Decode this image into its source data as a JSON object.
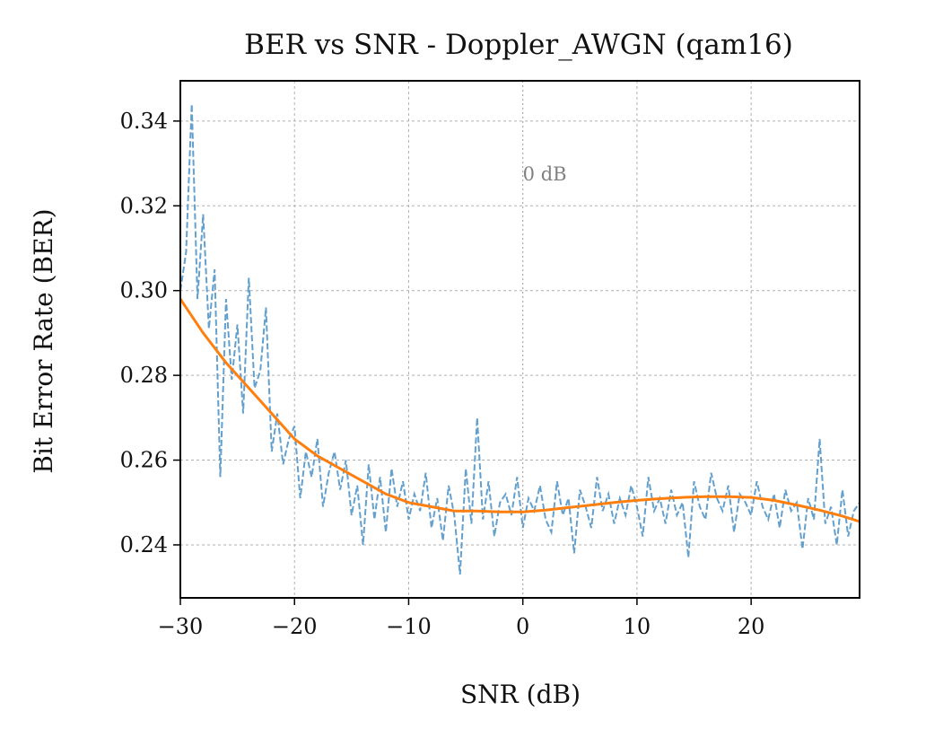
{
  "chart_data": {
    "type": "line",
    "title": "BER vs SNR - Doppler_AWGN (qam16)",
    "xlabel": "SNR (dB)",
    "ylabel": "Bit Error Rate (BER)",
    "xlim": [
      -30,
      29.5
    ],
    "ylim": [
      0.2275,
      0.3495
    ],
    "xticks": [
      -30,
      -20,
      -10,
      0,
      10,
      20
    ],
    "xtick_labels": [
      "−30",
      "−20",
      "−10",
      "0",
      "10",
      "20"
    ],
    "yticks": [
      0.24,
      0.26,
      0.28,
      0.3,
      0.32,
      0.34
    ],
    "ytick_labels": [
      "0.24",
      "0.26",
      "0.28",
      "0.30",
      "0.32",
      "0.34"
    ],
    "grid": true,
    "annotation": {
      "text": "0 dB",
      "x": 0,
      "y": 0.3275
    },
    "series": [
      {
        "style": "dashed",
        "color": "#5b9bcb",
        "x": [
          -30,
          -29.5,
          -29,
          -28.5,
          -28,
          -27.5,
          -27,
          -26.5,
          -26,
          -25.5,
          -25,
          -24.5,
          -24,
          -23.5,
          -23,
          -22.5,
          -22,
          -21.5,
          -21,
          -20.5,
          -20,
          -19.5,
          -19,
          -18.5,
          -18,
          -17.5,
          -17,
          -16.5,
          -16,
          -15.5,
          -15,
          -14.5,
          -14,
          -13.5,
          -13,
          -12.5,
          -12,
          -11.5,
          -11,
          -10.5,
          -10,
          -9.5,
          -9,
          -8.5,
          -8,
          -7.5,
          -7,
          -6.5,
          -6,
          -5.5,
          -5,
          -4.5,
          -4,
          -3.5,
          -3,
          -2.5,
          -2,
          -1.5,
          -1,
          -0.5,
          0,
          0.5,
          1,
          1.5,
          2,
          2.5,
          3,
          3.5,
          4,
          4.5,
          5,
          5.5,
          6,
          6.5,
          7,
          7.5,
          8,
          8.5,
          9,
          9.5,
          10,
          10.5,
          11,
          11.5,
          12,
          12.5,
          13,
          13.5,
          14,
          14.5,
          15,
          15.5,
          16,
          16.5,
          17,
          17.5,
          18,
          18.5,
          19,
          19.5,
          20,
          20.5,
          21,
          21.5,
          22,
          22.5,
          23,
          23.5,
          24,
          24.5,
          25,
          25.5,
          26,
          26.5,
          27,
          27.5,
          28,
          28.5,
          29,
          29.5
        ],
        "values": [
          0.3,
          0.309,
          0.344,
          0.298,
          0.318,
          0.291,
          0.305,
          0.256,
          0.298,
          0.279,
          0.292,
          0.271,
          0.303,
          0.277,
          0.281,
          0.296,
          0.262,
          0.271,
          0.259,
          0.265,
          0.268,
          0.251,
          0.262,
          0.256,
          0.265,
          0.249,
          0.257,
          0.262,
          0.253,
          0.26,
          0.247,
          0.254,
          0.24,
          0.259,
          0.246,
          0.256,
          0.243,
          0.258,
          0.249,
          0.255,
          0.246,
          0.252,
          0.248,
          0.257,
          0.244,
          0.251,
          0.241,
          0.254,
          0.247,
          0.233,
          0.258,
          0.245,
          0.27,
          0.246,
          0.255,
          0.242,
          0.25,
          0.252,
          0.247,
          0.256,
          0.244,
          0.251,
          0.248,
          0.254,
          0.246,
          0.243,
          0.255,
          0.247,
          0.251,
          0.238,
          0.253,
          0.249,
          0.244,
          0.256,
          0.248,
          0.252,
          0.245,
          0.251,
          0.247,
          0.254,
          0.249,
          0.242,
          0.256,
          0.248,
          0.251,
          0.245,
          0.253,
          0.247,
          0.25,
          0.237,
          0.255,
          0.249,
          0.246,
          0.257,
          0.251,
          0.248,
          0.254,
          0.243,
          0.252,
          0.25,
          0.247,
          0.255,
          0.249,
          0.246,
          0.252,
          0.244,
          0.253,
          0.248,
          0.25,
          0.239,
          0.251,
          0.246,
          0.265,
          0.245,
          0.249,
          0.24,
          0.253,
          0.242,
          0.248,
          0.25
        ]
      },
      {
        "style": "solid",
        "color": "#ff7f0e",
        "x": [
          -30,
          -28,
          -26,
          -24,
          -22,
          -20,
          -18,
          -16,
          -14,
          -12,
          -10,
          -8,
          -6,
          -4,
          -2,
          0,
          2,
          4,
          6,
          8,
          10,
          12,
          14,
          16,
          18,
          20,
          22,
          24,
          26,
          28,
          29.5
        ],
        "values": [
          0.298,
          0.29,
          0.283,
          0.277,
          0.271,
          0.265,
          0.261,
          0.258,
          0.255,
          0.252,
          0.25,
          0.249,
          0.248,
          0.248,
          0.2478,
          0.2478,
          0.2482,
          0.2488,
          0.2494,
          0.25,
          0.2505,
          0.2509,
          0.2512,
          0.2514,
          0.2514,
          0.2512,
          0.2505,
          0.2494,
          0.2482,
          0.2468,
          0.2455
        ]
      }
    ]
  }
}
